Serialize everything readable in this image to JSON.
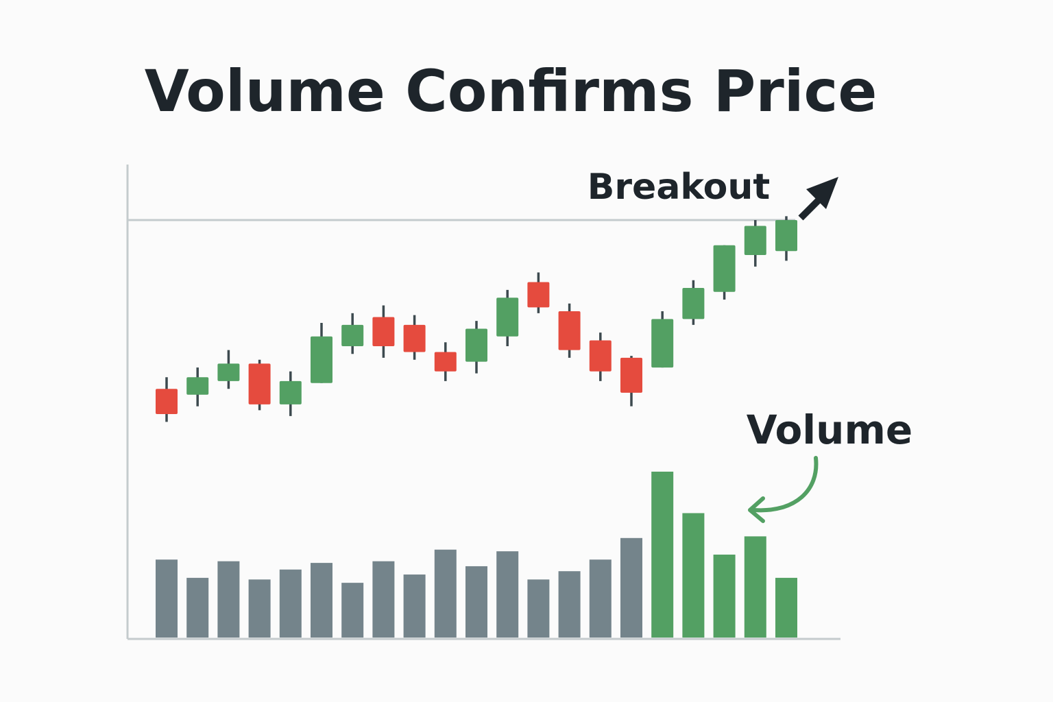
{
  "chart_data": {
    "type": "candlestick+bar",
    "title": "Volume Confirms Price",
    "annotations": {
      "breakout": "Breakout",
      "volume": "Volume"
    },
    "resistance_level": 100,
    "price_range": [
      0,
      100
    ],
    "volume_range": [
      0,
      100
    ],
    "colors": {
      "up": "#53a063",
      "down": "#e54b3e",
      "volume_normal": "#74848b",
      "volume_high": "#53a063",
      "axis": "#c4cbcd",
      "text": "#1e252b"
    },
    "candles": [
      {
        "open": 13,
        "close": 0,
        "high": 19,
        "low": -4
      },
      {
        "open": 10,
        "close": 19,
        "high": 24,
        "low": 4
      },
      {
        "open": 17,
        "close": 26,
        "high": 33,
        "low": 13
      },
      {
        "open": 26,
        "close": 5,
        "high": 28,
        "low": 2
      },
      {
        "open": 5,
        "close": 17,
        "high": 22,
        "low": -1
      },
      {
        "open": 16,
        "close": 40,
        "high": 47,
        "low": 16
      },
      {
        "open": 35,
        "close": 46,
        "high": 52,
        "low": 31
      },
      {
        "open": 50,
        "close": 35,
        "high": 56,
        "low": 29
      },
      {
        "open": 46,
        "close": 32,
        "high": 51,
        "low": 28
      },
      {
        "open": 32,
        "close": 22,
        "high": 37,
        "low": 17
      },
      {
        "open": 27,
        "close": 44,
        "high": 48,
        "low": 21
      },
      {
        "open": 40,
        "close": 60,
        "high": 64,
        "low": 35
      },
      {
        "open": 68,
        "close": 55,
        "high": 73,
        "low": 52
      },
      {
        "open": 53,
        "close": 33,
        "high": 57,
        "low": 29
      },
      {
        "open": 38,
        "close": 22,
        "high": 42,
        "low": 17
      },
      {
        "open": 29,
        "close": 11,
        "high": 30,
        "low": 4
      },
      {
        "open": 24,
        "close": 49,
        "high": 53,
        "low": 24
      },
      {
        "open": 49,
        "close": 65,
        "high": 69,
        "low": 46
      },
      {
        "open": 63,
        "close": 87,
        "high": 87,
        "low": 59
      },
      {
        "open": 82,
        "close": 97,
        "high": 100,
        "low": 76
      },
      {
        "open": 84,
        "close": 100,
        "high": 102,
        "low": 79
      }
    ],
    "volume": [
      47,
      36,
      46,
      35,
      41,
      45,
      33,
      46,
      38,
      53,
      43,
      52,
      35,
      40,
      47,
      60,
      100,
      75,
      50,
      61,
      36
    ],
    "volume_highlight_from": 16
  }
}
